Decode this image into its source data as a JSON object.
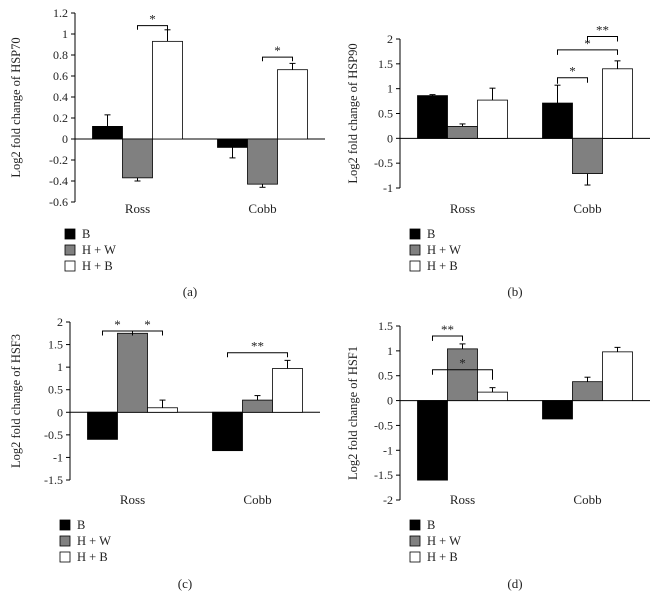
{
  "colors": {
    "B": "#000000",
    "HW": "#808080",
    "HB": "#ffffff",
    "stroke": "#000000"
  },
  "chart_data": [
    {
      "type": "bar",
      "panel_label": "(a)",
      "ylabel": "Log2 fold change of HSP70",
      "ylim": [
        -0.6,
        1.2
      ],
      "yticks": [
        "-0.6",
        "-0.4",
        "-0.2",
        "0",
        "0.2",
        "0.4",
        "0.6",
        "0.8",
        "1",
        "1.2"
      ],
      "ytick_values": [
        -0.6,
        -0.4,
        -0.2,
        0,
        0.2,
        0.4,
        0.6,
        0.8,
        1,
        1.2
      ],
      "categories": [
        "Ross",
        "Cobb"
      ],
      "series": [
        {
          "name": "B",
          "values": [
            0.12,
            -0.08
          ],
          "errors": [
            0.11,
            0.1
          ]
        },
        {
          "name": "H + W",
          "values": [
            -0.37,
            -0.43
          ],
          "errors": [
            0.03,
            0.03
          ]
        },
        {
          "name": "H + B",
          "values": [
            0.93,
            0.66
          ],
          "errors": [
            0.11,
            0.06
          ]
        }
      ],
      "annotations": [
        {
          "label": "*",
          "category": 0,
          "from": 1,
          "to": 2,
          "at": 1.08,
          "drop_from": 1.04,
          "drop_to": 1.04
        },
        {
          "label": "*",
          "category": 1,
          "from": 1,
          "to": 2,
          "at": 0.78,
          "drop_from": 0.74,
          "drop_to": 0.74
        }
      ]
    },
    {
      "type": "bar",
      "panel_label": "(b)",
      "ylabel": "Log2 fold change of HSP90",
      "ylim": [
        -1,
        2
      ],
      "yticks": [
        "-1",
        "-0.5",
        "0",
        "0.5",
        "1",
        "1.5",
        "2"
      ],
      "ytick_values": [
        -1,
        -0.5,
        0,
        0.5,
        1,
        1.5,
        2
      ],
      "categories": [
        "Ross",
        "Cobb"
      ],
      "series": [
        {
          "name": "B",
          "values": [
            0.86,
            0.71
          ],
          "errors": [
            0.02,
            0.36
          ]
        },
        {
          "name": "H + W",
          "values": [
            0.24,
            -0.71
          ],
          "errors": [
            0.05,
            0.23
          ]
        },
        {
          "name": "H + B",
          "values": [
            0.77,
            1.4
          ],
          "errors": [
            0.24,
            0.16
          ]
        }
      ],
      "annotations": [
        {
          "label": "*",
          "category": 1,
          "from": 0,
          "to": 1,
          "at": 1.22,
          "drop_from": 1.1,
          "drop_to": 1.12
        },
        {
          "label": "*",
          "category": 1,
          "from": 0,
          "to": 2,
          "at": 1.78,
          "drop_from": 1.68,
          "drop_to": 1.68
        },
        {
          "label": "**",
          "category": 1,
          "from": 1,
          "to": 2,
          "at": 2.05,
          "drop_from": 1.95,
          "drop_to": 1.95
        }
      ]
    },
    {
      "type": "bar",
      "panel_label": "(c)",
      "ylabel": "Log2 fold change of HSF3",
      "ylim": [
        -1.5,
        2
      ],
      "yticks": [
        "-1.5",
        "-1",
        "-0.5",
        "0",
        "0.5",
        "1",
        "1.5",
        "2"
      ],
      "ytick_values": [
        -1.5,
        -1,
        -0.5,
        0,
        0.5,
        1,
        1.5,
        2
      ],
      "categories": [
        "Ross",
        "Cobb"
      ],
      "series": [
        {
          "name": "B",
          "values": [
            -0.6,
            -0.85
          ],
          "errors": [
            0.0,
            0.0
          ]
        },
        {
          "name": "H + W",
          "values": [
            1.75,
            0.27
          ],
          "errors": [
            0.0,
            0.1
          ]
        },
        {
          "name": "H + B",
          "values": [
            0.1,
            0.97
          ],
          "errors": [
            0.17,
            0.18
          ]
        }
      ],
      "annotations": [
        {
          "label": "*",
          "category": 0,
          "from": 0,
          "to": 1,
          "at": 1.8,
          "drop_from": 1.7,
          "drop_to": 1.7
        },
        {
          "label": "*",
          "category": 0,
          "from": 1,
          "to": 2,
          "at": 1.8,
          "drop_from": 1.7,
          "drop_to": 1.7
        },
        {
          "label": "**",
          "category": 1,
          "from": 0,
          "to": 2,
          "at": 1.32,
          "drop_from": 1.22,
          "drop_to": 1.22
        }
      ]
    },
    {
      "type": "bar",
      "panel_label": "(d)",
      "ylabel": "Log2 fold change of HSF1",
      "ylim": [
        -2,
        1.5
      ],
      "yticks": [
        "-2",
        "-1.5",
        "-1",
        "-0.5",
        "0",
        "0.5",
        "1",
        "1.5"
      ],
      "ytick_values": [
        -2,
        -1.5,
        -1,
        -0.5,
        0,
        0.5,
        1,
        1.5
      ],
      "categories": [
        "Ross",
        "Cobb"
      ],
      "series": [
        {
          "name": "B",
          "values": [
            -1.6,
            -0.37
          ],
          "errors": [
            0.0,
            0.0
          ]
        },
        {
          "name": "H + W",
          "values": [
            1.04,
            0.38
          ],
          "errors": [
            0.1,
            0.09
          ]
        },
        {
          "name": "H + B",
          "values": [
            0.17,
            0.98
          ],
          "errors": [
            0.09,
            0.09
          ]
        }
      ],
      "annotations": [
        {
          "label": "**",
          "category": 0,
          "from": 0,
          "to": 1,
          "at": 1.3,
          "drop_from": 1.2,
          "drop_to": 1.2
        },
        {
          "label": "*",
          "category": 0,
          "from": 0,
          "to": 2,
          "at": 0.62,
          "drop_from": 0.52,
          "drop_to": 0.42
        }
      ]
    }
  ]
}
